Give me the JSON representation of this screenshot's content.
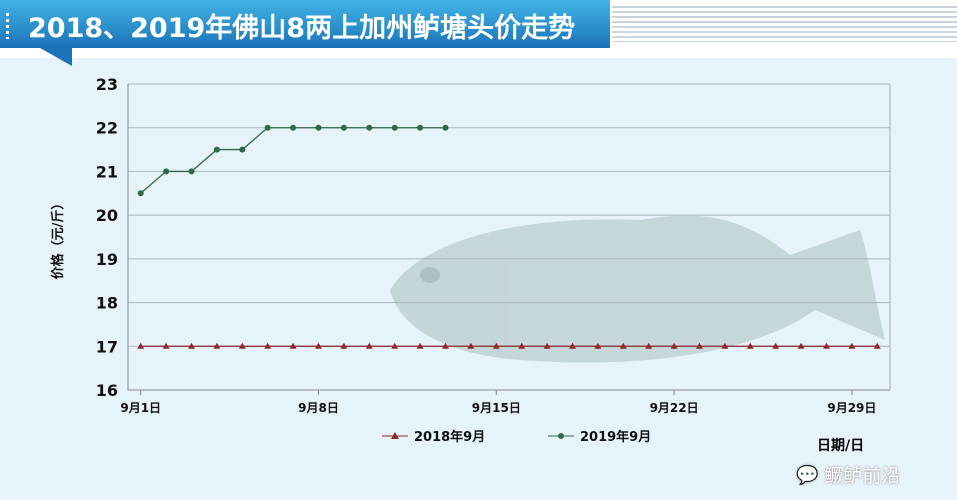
{
  "header": {
    "title": "2018、2019年佛山8两上加州鲈塘头价走势"
  },
  "watermark": {
    "text": "鳜鲈前沿",
    "icon": "wechat-icon"
  },
  "chart_data": {
    "type": "line",
    "title": "2018、2019年佛山8两上加州鲈塘头价走势",
    "ylabel": "价格（元/斤）",
    "xlabel": "日期/日",
    "ylim": [
      16,
      23
    ],
    "yticks": [
      16,
      17,
      18,
      19,
      20,
      21,
      22,
      23
    ],
    "xlim": [
      0.5,
      30.5
    ],
    "xticks": [
      {
        "day": 1,
        "label": "9月1日"
      },
      {
        "day": 8,
        "label": "9月8日"
      },
      {
        "day": 15,
        "label": "9月15日"
      },
      {
        "day": 22,
        "label": "9月22日"
      },
      {
        "day": 29,
        "label": "9月29日"
      }
    ],
    "grid": true,
    "legend_position": "bottom",
    "series": [
      {
        "name": "2018年9月",
        "color": "#8b2a2a",
        "marker": "triangle",
        "x": [
          1,
          2,
          3,
          4,
          5,
          6,
          7,
          8,
          9,
          10,
          11,
          12,
          13,
          14,
          15,
          16,
          17,
          18,
          19,
          20,
          21,
          22,
          23,
          24,
          25,
          26,
          27,
          28,
          29,
          30
        ],
        "values": [
          17,
          17,
          17,
          17,
          17,
          17,
          17,
          17,
          17,
          17,
          17,
          17,
          17,
          17,
          17,
          17,
          17,
          17,
          17,
          17,
          17,
          17,
          17,
          17,
          17,
          17,
          17,
          17,
          17,
          17
        ]
      },
      {
        "name": "2019年9月",
        "color": "#2e6b45",
        "marker": "circle",
        "x": [
          1,
          2,
          3,
          4,
          5,
          6,
          7,
          8,
          9,
          10,
          11,
          12,
          13
        ],
        "values": [
          20.5,
          21,
          21,
          21.5,
          21.5,
          22,
          22,
          22,
          22,
          22,
          22,
          22,
          22
        ]
      }
    ]
  }
}
